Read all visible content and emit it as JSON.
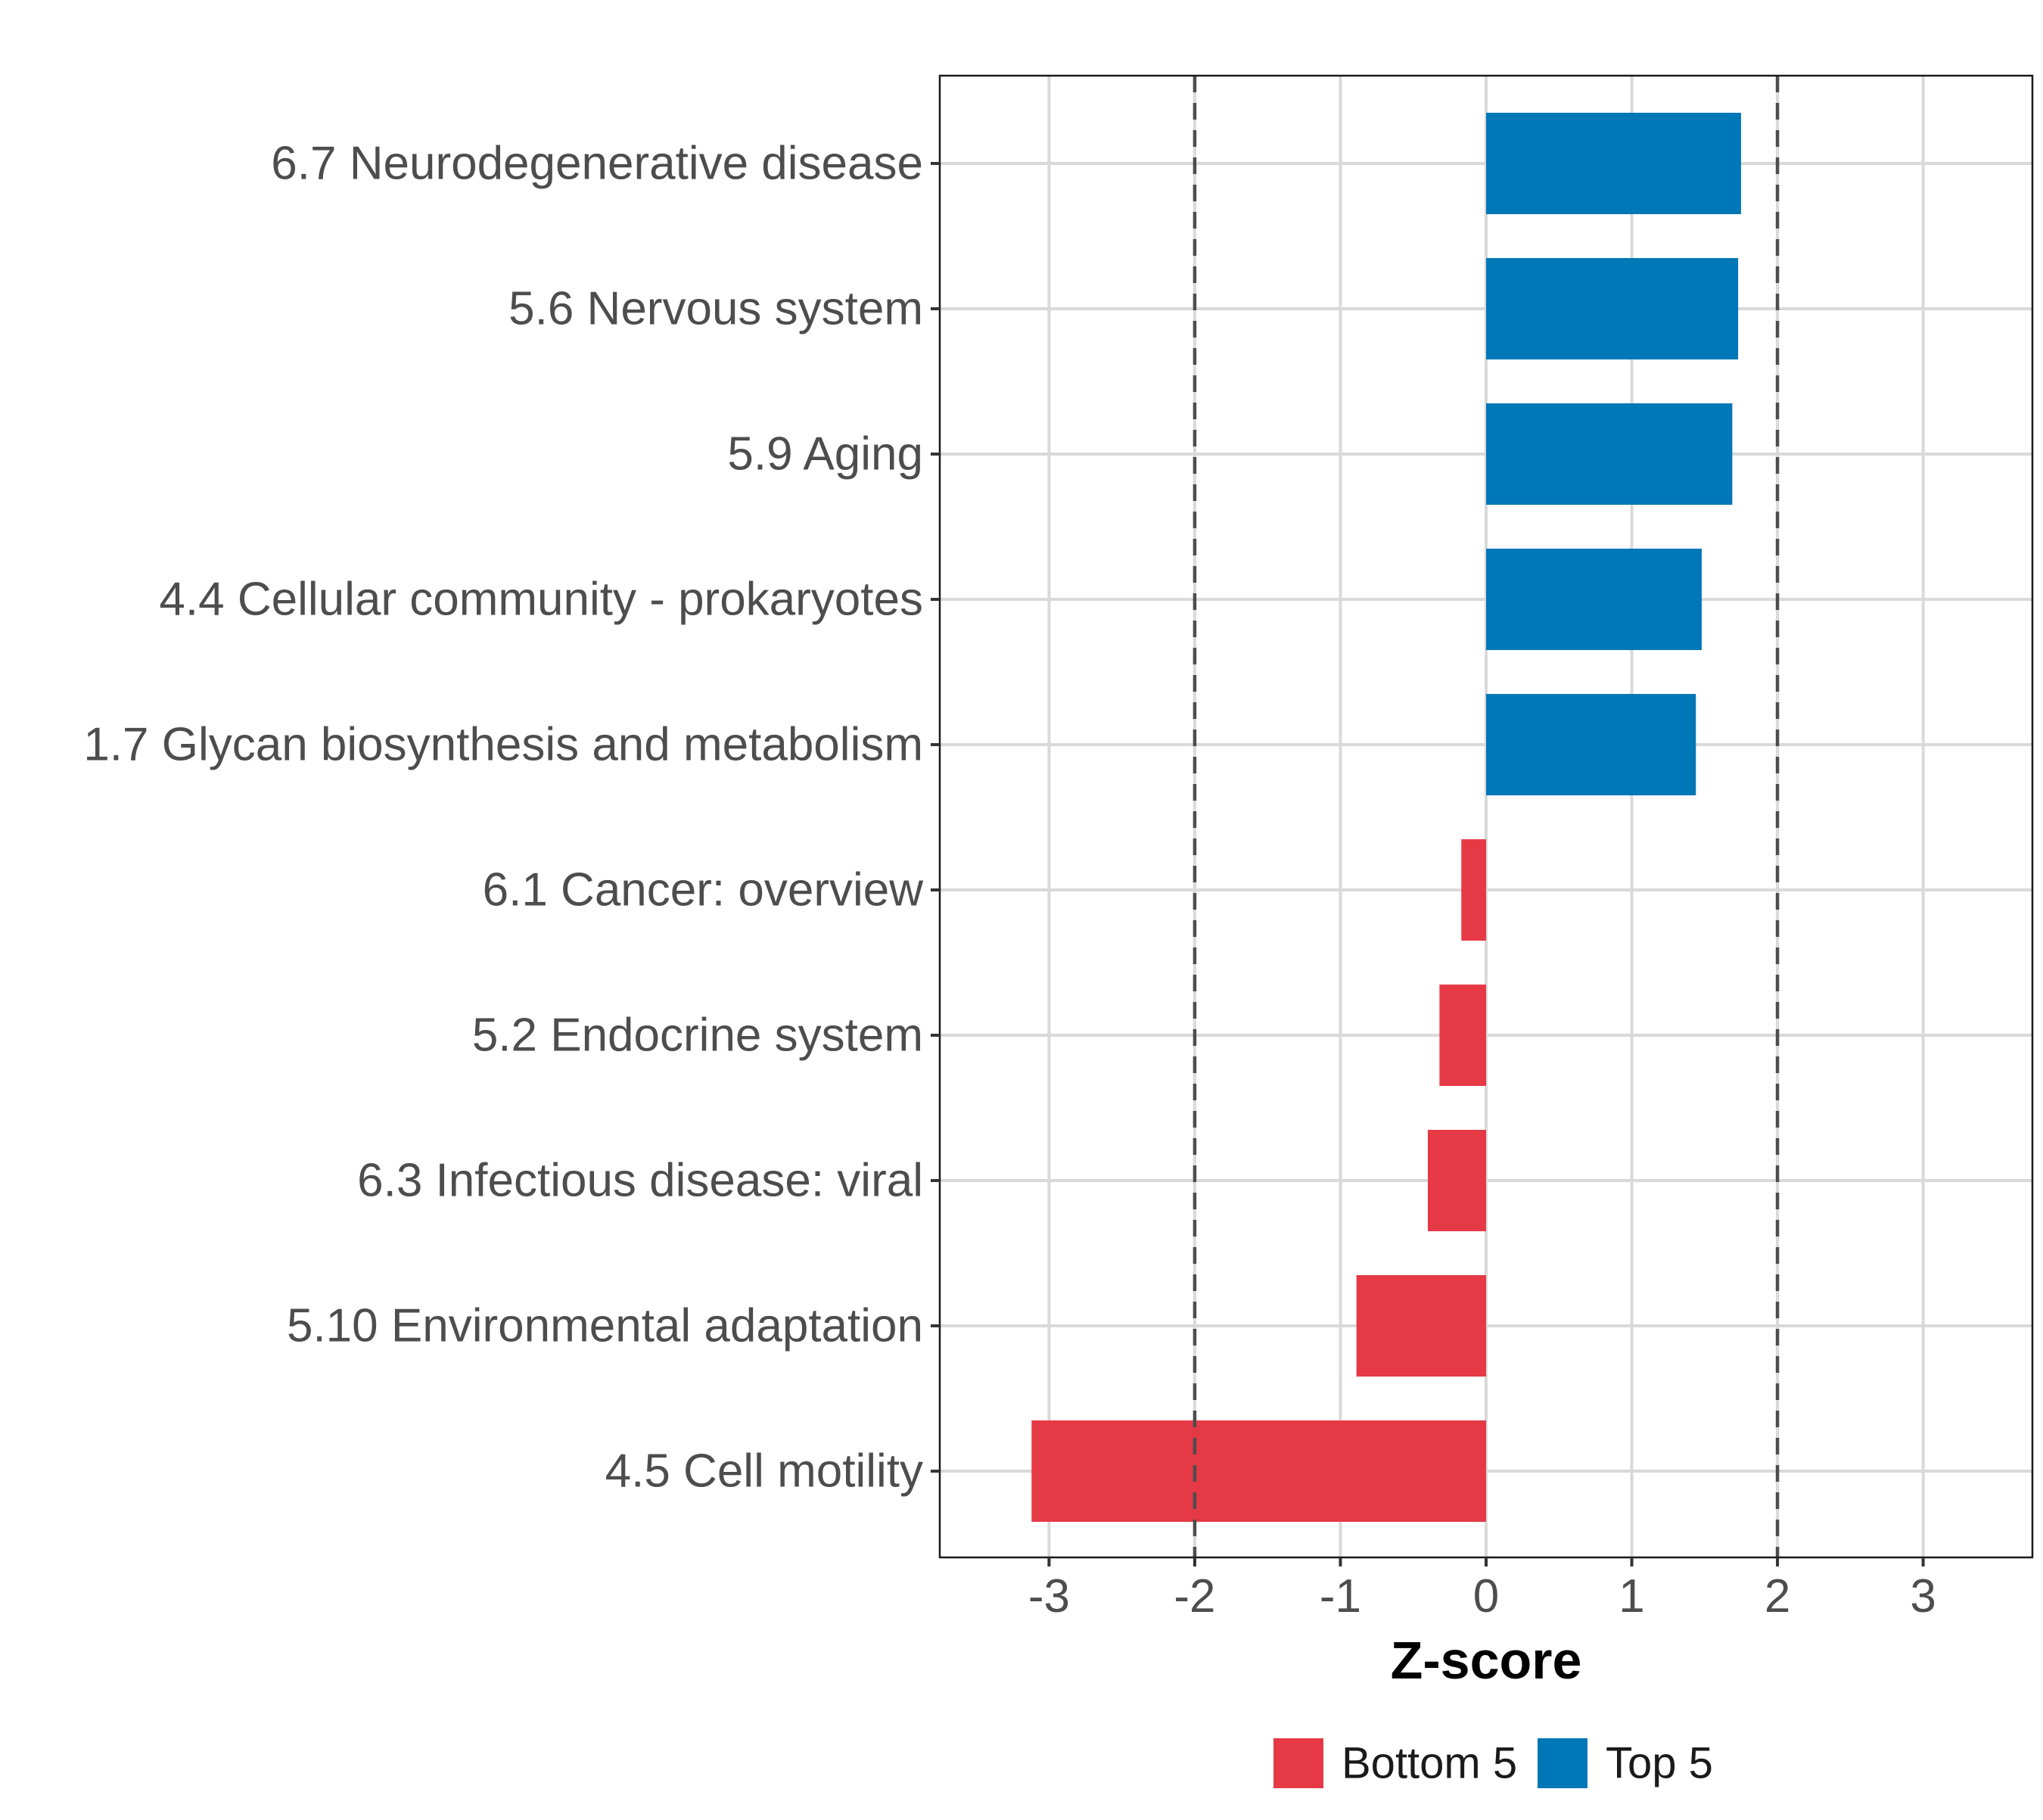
{
  "chart_data": {
    "type": "bar",
    "orientation": "horizontal",
    "title": "",
    "xlabel": "Z-score",
    "ylabel": "",
    "xlim": [
      -3.75,
      3.75
    ],
    "xticks": [
      -3,
      -2,
      -1,
      0,
      1,
      2,
      3
    ],
    "reference_lines": [
      -2,
      2
    ],
    "grid": true,
    "legend_position": "bottom",
    "categories": [
      "6.7 Neurodegenerative disease",
      "5.6 Nervous system",
      "5.9 Aging",
      "4.4 Cellular community - prokaryotes",
      "1.7 Glycan biosynthesis and metabolism",
      "6.1 Cancer: overview",
      "5.2 Endocrine system",
      "6.3 Infectious disease: viral",
      "5.10 Environmental adaptation",
      "4.5 Cell motility"
    ],
    "values": [
      1.75,
      1.73,
      1.69,
      1.48,
      1.44,
      -0.17,
      -0.32,
      -0.4,
      -0.89,
      -3.12
    ],
    "groups": [
      "Top 5",
      "Top 5",
      "Top 5",
      "Top 5",
      "Top 5",
      "Bottom 5",
      "Bottom 5",
      "Bottom 5",
      "Bottom 5",
      "Bottom 5"
    ],
    "series": [
      {
        "name": "Bottom 5",
        "color": "#E63946"
      },
      {
        "name": "Top 5",
        "color": "#0077B6"
      }
    ]
  }
}
